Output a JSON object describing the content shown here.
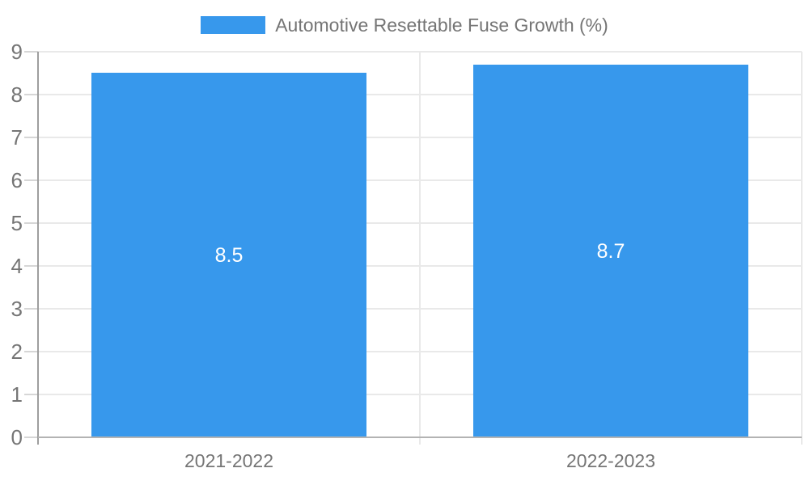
{
  "chart_data": {
    "type": "bar",
    "title": "",
    "legend": {
      "position": "top",
      "label": "Automotive Resettable Fuse Growth (%)"
    },
    "categories": [
      "2021-2022",
      "2022-2023"
    ],
    "series": [
      {
        "name": "Automotive Resettable Fuse Growth (%)",
        "values": [
          8.5,
          8.7
        ],
        "value_labels": [
          "8.5",
          "8.7"
        ]
      }
    ],
    "xlabel": "",
    "ylabel": "",
    "ylim": [
      0,
      9
    ],
    "yticks": [
      "0",
      "1",
      "2",
      "3",
      "4",
      "5",
      "6",
      "7",
      "8",
      "9"
    ],
    "grid": true,
    "colors": {
      "bar": "#3798ec",
      "bar_value_label": "#ffffff",
      "axis_text": "#757575",
      "gridline": "#e9e9e9",
      "tick_mark": "#d6d6d6",
      "y_axis_line": "#9e9e9e",
      "x_baseline": "#b3b3b3",
      "background": "#ffffff"
    }
  }
}
